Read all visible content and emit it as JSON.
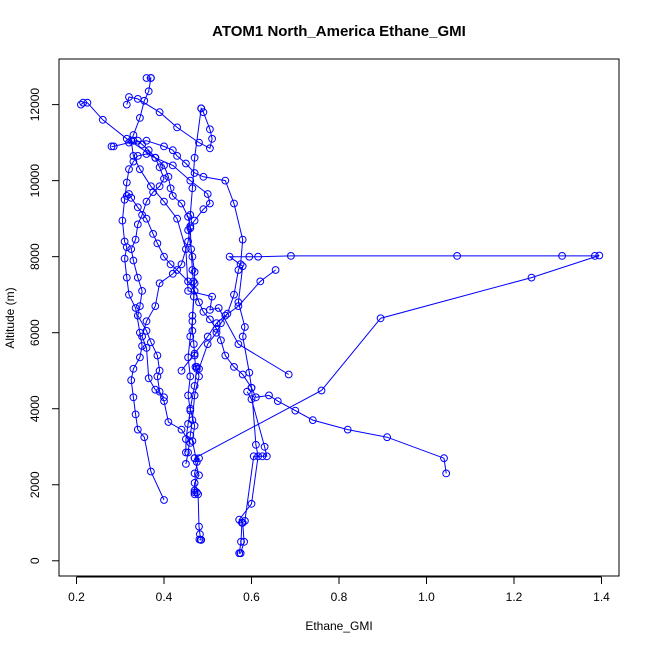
{
  "chart_data": {
    "type": "line",
    "title": "ATOM1 North_America Ethane_GMI",
    "xlabel": "Ethane_GMI",
    "ylabel": "Altitude (m)",
    "xlim": [
      0.16,
      1.44
    ],
    "ylim": [
      -400,
      13200
    ],
    "x_ticks": [
      0.2,
      0.4,
      0.6,
      0.8,
      1.0,
      1.2,
      1.4
    ],
    "x_tick_labels": [
      "0.2",
      "0.4",
      "0.6",
      "0.8",
      "1.0",
      "1.2",
      "1.4"
    ],
    "y_ticks": [
      0,
      2000,
      4000,
      6000,
      8000,
      10000,
      12000
    ],
    "y_tick_labels": [
      "0",
      "2000",
      "4000",
      "6000",
      "8000",
      "10000",
      "12000"
    ],
    "color": "#0000ff",
    "markers": "open-circle",
    "grid": false,
    "legend": "none",
    "series": [
      {
        "points": [
          [
            0.575,
            200
          ],
          [
            0.583,
            500
          ],
          [
            0.58,
            1000
          ],
          [
            0.572,
            1080
          ],
          [
            0.6,
            1500
          ],
          [
            0.615,
            2750
          ],
          [
            0.61,
            3050
          ],
          [
            0.6,
            4550
          ],
          [
            0.595,
            4950
          ],
          [
            0.58,
            5900
          ],
          [
            0.585,
            6150
          ],
          [
            0.57,
            6800
          ],
          [
            0.58,
            7750
          ],
          [
            0.55,
            8000
          ],
          [
            0.595,
            8000
          ],
          [
            0.615,
            8000
          ],
          [
            0.69,
            8020
          ],
          [
            1.07,
            8020
          ],
          [
            1.31,
            8020
          ],
          [
            1.385,
            8020
          ],
          [
            1.395,
            8030
          ],
          [
            1.24,
            7450
          ],
          [
            0.895,
            6380
          ],
          [
            0.76,
            4480
          ],
          [
            0.47,
            2700
          ],
          [
            0.48,
            2700
          ],
          [
            0.47,
            2300
          ],
          [
            0.475,
            1800
          ],
          [
            0.478,
            1750
          ],
          [
            0.48,
            900
          ],
          [
            0.482,
            700
          ],
          [
            0.485,
            550
          ],
          [
            0.484,
            550
          ],
          [
            0.481,
            560
          ]
        ]
      },
      {
        "points": [
          [
            0.685,
            4900
          ],
          [
            0.57,
            5700
          ],
          [
            0.525,
            6650
          ],
          [
            0.505,
            6600
          ],
          [
            0.51,
            6950
          ],
          [
            0.455,
            7100
          ],
          [
            0.45,
            8200
          ],
          [
            0.43,
            9000
          ],
          [
            0.4,
            9450
          ],
          [
            0.37,
            9850
          ],
          [
            0.345,
            10300
          ],
          [
            0.33,
            10650
          ],
          [
            0.325,
            11050
          ],
          [
            0.33,
            11200
          ],
          [
            0.345,
            11650
          ],
          [
            0.355,
            12100
          ],
          [
            0.365,
            12350
          ],
          [
            0.37,
            12700
          ],
          [
            0.37,
            12700
          ],
          [
            0.36,
            12700
          ]
        ]
      },
      {
        "points": [
          [
            0.21,
            12000
          ],
          [
            0.215,
            12050
          ],
          [
            0.225,
            12050
          ],
          [
            0.26,
            11600
          ],
          [
            0.315,
            11100
          ],
          [
            0.38,
            10600
          ],
          [
            0.42,
            10400
          ],
          [
            0.46,
            10000
          ],
          [
            0.5,
            9650
          ],
          [
            0.505,
            9400
          ],
          [
            0.49,
            9250
          ],
          [
            0.47,
            8950
          ],
          [
            0.46,
            8800
          ],
          [
            0.455,
            8400
          ],
          [
            0.44,
            7800
          ],
          [
            0.42,
            7550
          ],
          [
            0.39,
            7300
          ],
          [
            0.38,
            6700
          ],
          [
            0.36,
            6300
          ],
          [
            0.35,
            5900
          ],
          [
            0.36,
            5600
          ],
          [
            0.365,
            4800
          ],
          [
            0.38,
            4500
          ],
          [
            0.4,
            4300
          ]
        ]
      },
      {
        "points": [
          [
            0.315,
            12000
          ],
          [
            0.32,
            12200
          ],
          [
            0.34,
            12150
          ],
          [
            0.39,
            11800
          ],
          [
            0.43,
            11400
          ],
          [
            0.48,
            11000
          ],
          [
            0.505,
            10850
          ],
          [
            0.51,
            11100
          ],
          [
            0.505,
            11350
          ],
          [
            0.49,
            11800
          ],
          [
            0.485,
            11900
          ],
          [
            0.485,
            11900
          ],
          [
            0.47,
            10600
          ],
          [
            0.465,
            9800
          ],
          [
            0.46,
            9100
          ],
          [
            0.455,
            8700
          ],
          [
            0.465,
            8000
          ],
          [
            0.47,
            7600
          ],
          [
            0.47,
            7300
          ],
          [
            0.465,
            6300
          ],
          [
            0.46,
            5900
          ],
          [
            0.455,
            5350
          ],
          [
            0.46,
            4850
          ],
          [
            0.455,
            4350
          ],
          [
            0.46,
            3950
          ],
          [
            0.455,
            3600
          ],
          [
            0.45,
            3200
          ],
          [
            0.45,
            2850
          ]
        ]
      },
      {
        "points": [
          [
            0.28,
            10900
          ],
          [
            0.285,
            10900
          ],
          [
            0.32,
            11000
          ],
          [
            0.36,
            11050
          ],
          [
            0.4,
            10900
          ],
          [
            0.42,
            10800
          ],
          [
            0.43,
            10650
          ],
          [
            0.45,
            10450
          ],
          [
            0.47,
            10200
          ],
          [
            0.49,
            10100
          ],
          [
            0.54,
            10000
          ],
          [
            0.56,
            9400
          ],
          [
            0.58,
            8450
          ],
          [
            0.575,
            7800
          ],
          [
            0.57,
            7650
          ],
          [
            0.56,
            7000
          ],
          [
            0.545,
            6500
          ],
          [
            0.53,
            6250
          ],
          [
            0.52,
            6000
          ],
          [
            0.5,
            5700
          ],
          [
            0.48,
            5050
          ],
          [
            0.475,
            5050
          ],
          [
            0.47,
            4600
          ],
          [
            0.46,
            4000
          ],
          [
            0.47,
            3550
          ],
          [
            0.465,
            3150
          ],
          [
            0.475,
            2600
          ]
        ]
      },
      {
        "points": [
          [
            0.33,
            11050
          ],
          [
            0.34,
            11050
          ],
          [
            0.35,
            10950
          ],
          [
            0.365,
            10800
          ],
          [
            0.38,
            10600
          ],
          [
            0.39,
            10350
          ],
          [
            0.4,
            10050
          ],
          [
            0.39,
            9850
          ],
          [
            0.375,
            9700
          ],
          [
            0.36,
            9450
          ],
          [
            0.35,
            9100
          ],
          [
            0.34,
            8850
          ],
          [
            0.335,
            8450
          ],
          [
            0.325,
            8200
          ],
          [
            0.33,
            7900
          ],
          [
            0.34,
            7450
          ],
          [
            0.35,
            7100
          ],
          [
            0.345,
            6700
          ],
          [
            0.34,
            6450
          ],
          [
            0.36,
            6050
          ],
          [
            0.37,
            5750
          ],
          [
            0.385,
            5400
          ],
          [
            0.39,
            5000
          ],
          [
            0.385,
            4850
          ],
          [
            0.39,
            4450
          ],
          [
            0.4,
            4200
          ],
          [
            0.41,
            3650
          ],
          [
            0.44,
            3450
          ],
          [
            0.46,
            3100
          ]
        ]
      },
      {
        "points": [
          [
            0.315,
            9600
          ],
          [
            0.32,
            9650
          ],
          [
            0.325,
            9550
          ],
          [
            0.34,
            9300
          ],
          [
            0.36,
            9000
          ],
          [
            0.375,
            8600
          ],
          [
            0.385,
            8350
          ],
          [
            0.4,
            8000
          ],
          [
            0.415,
            7800
          ],
          [
            0.43,
            7650
          ],
          [
            0.455,
            7350
          ],
          [
            0.47,
            7100
          ],
          [
            0.48,
            6800
          ],
          [
            0.49,
            6550
          ],
          [
            0.505,
            6350
          ],
          [
            0.52,
            6100
          ],
          [
            0.53,
            5800
          ],
          [
            0.54,
            5400
          ],
          [
            0.56,
            5100
          ],
          [
            0.58,
            4900
          ],
          [
            0.6,
            4550
          ],
          [
            0.61,
            4300
          ],
          [
            0.64,
            4350
          ],
          [
            0.66,
            4200
          ],
          [
            0.7,
            3950
          ],
          [
            0.74,
            3700
          ],
          [
            0.82,
            3450
          ],
          [
            0.91,
            3250
          ],
          [
            1.04,
            2700
          ],
          [
            1.045,
            2300
          ]
        ]
      },
      {
        "points": [
          [
            0.4,
            1600
          ],
          [
            0.37,
            2350
          ],
          [
            0.355,
            3250
          ],
          [
            0.34,
            3450
          ],
          [
            0.335,
            3850
          ],
          [
            0.33,
            4300
          ],
          [
            0.325,
            4750
          ],
          [
            0.33,
            5050
          ],
          [
            0.345,
            5350
          ],
          [
            0.35,
            5650
          ],
          [
            0.345,
            6000
          ],
          [
            0.335,
            6650
          ],
          [
            0.32,
            7000
          ],
          [
            0.315,
            7450
          ],
          [
            0.31,
            7950
          ],
          [
            0.315,
            8250
          ],
          [
            0.31,
            8400
          ],
          [
            0.305,
            8950
          ],
          [
            0.31,
            9500
          ],
          [
            0.315,
            9950
          ],
          [
            0.32,
            10300
          ],
          [
            0.33,
            10500
          ],
          [
            0.34,
            10650
          ],
          [
            0.36,
            10700
          ],
          [
            0.38,
            10600
          ],
          [
            0.4,
            10400
          ],
          [
            0.41,
            10100
          ],
          [
            0.415,
            9800
          ],
          [
            0.42,
            9600
          ],
          [
            0.44,
            9400
          ],
          [
            0.455,
            9050
          ],
          [
            0.46,
            8750
          ],
          [
            0.462,
            8200
          ],
          [
            0.465,
            7650
          ],
          [
            0.467,
            7350
          ],
          [
            0.468,
            6950
          ],
          [
            0.465,
            6450
          ],
          [
            0.465,
            6050
          ],
          [
            0.468,
            5700
          ],
          [
            0.47,
            5400
          ],
          [
            0.472,
            5100
          ],
          [
            0.475,
            5100
          ],
          [
            0.48,
            4850
          ],
          [
            0.47,
            4350
          ],
          [
            0.465,
            3700
          ],
          [
            0.46,
            3300
          ],
          [
            0.455,
            2850
          ],
          [
            0.45,
            2550
          ]
        ]
      },
      {
        "points": [
          [
            0.47,
            2700
          ],
          [
            0.48,
            2250
          ],
          [
            0.47,
            2050
          ],
          [
            0.47,
            1850
          ],
          [
            0.47,
            1800
          ],
          [
            0.47,
            1750
          ]
        ]
      },
      {
        "points": [
          [
            0.575,
            200
          ],
          [
            0.572,
            200
          ],
          [
            0.576,
            500
          ],
          [
            0.578,
            1000
          ],
          [
            0.585,
            1050
          ],
          [
            0.605,
            2750
          ],
          [
            0.625,
            2750
          ],
          [
            0.635,
            2750
          ],
          [
            0.63,
            3000
          ],
          [
            0.6,
            4250
          ],
          [
            0.59,
            4450
          ]
        ]
      },
      {
        "points": [
          [
            0.655,
            7650
          ],
          [
            0.62,
            7350
          ],
          [
            0.57,
            6700
          ],
          [
            0.54,
            6450
          ],
          [
            0.52,
            6250
          ],
          [
            0.5,
            5900
          ],
          [
            0.47,
            5450
          ],
          [
            0.44,
            5000
          ]
        ]
      }
    ]
  }
}
